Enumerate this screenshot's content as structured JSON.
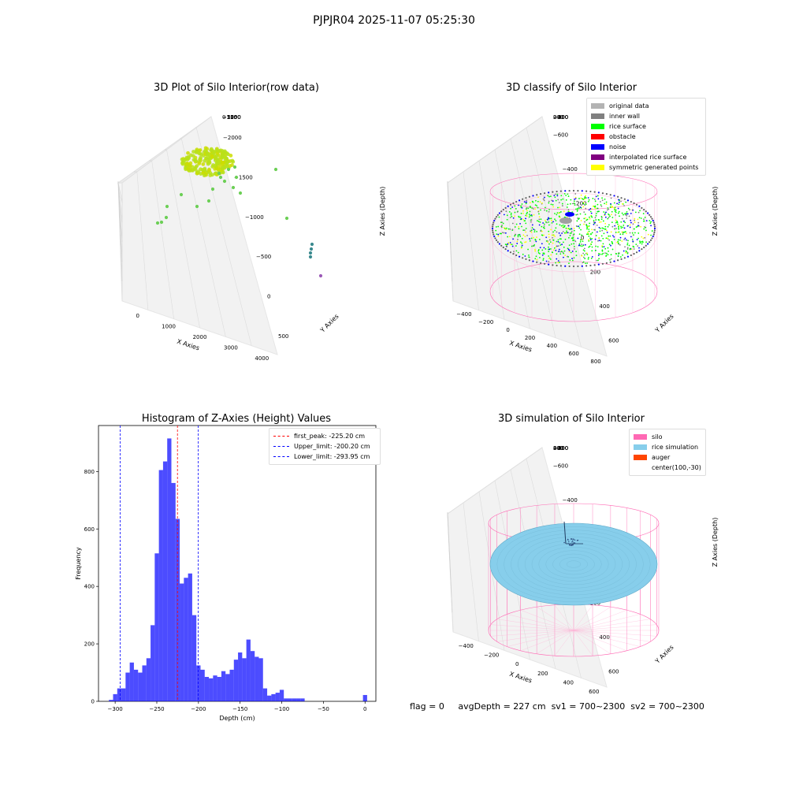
{
  "suptitle": "PJPJR04 2025-11-07 05:25:30",
  "panels": {
    "p1": {
      "title": "3D Plot of Silo Interior(row data)",
      "xlabel": "X Axies",
      "ylabel": "Y Axies",
      "zlabel": "Z Axies (Depth)",
      "xticks": [
        "0",
        "1000",
        "2000",
        "3000",
        "4000"
      ],
      "yticks": [
        "500",
        "0",
        "−500",
        "−1000",
        "−1500",
        "−2000"
      ],
      "zticks": [
        "0",
        "−250",
        "−500",
        "−750",
        "−1000",
        "−1250",
        "−1500",
        "−1750"
      ]
    },
    "p2": {
      "title": "3D classify of Silo Interior",
      "xlabel": "X Axies",
      "ylabel": "Y Axies",
      "zlabel": "Z Axies (Depth)",
      "xticks": [
        "−400",
        "−200",
        "0",
        "200",
        "400",
        "600",
        "800"
      ],
      "yticks": [
        "600",
        "400",
        "200",
        "0",
        "−200",
        "−400",
        "−600"
      ],
      "zticks": [
        "200",
        "0",
        "−200",
        "−400",
        "−600",
        "−800"
      ],
      "legend": [
        {
          "label": "original data",
          "color": "#b3b3b3"
        },
        {
          "label": "inner wall",
          "color": "#808080"
        },
        {
          "label": "rice surface",
          "color": "#00ff00"
        },
        {
          "label": "obstacle",
          "color": "#ff0000"
        },
        {
          "label": "noise",
          "color": "#0000ff"
        },
        {
          "label": "interpolated rice surface",
          "color": "#800080"
        },
        {
          "label": "symmetric generated points",
          "color": "#ffff00"
        }
      ],
      "partial_tick": "00"
    },
    "p4": {
      "title": "3D simulation of Silo Interior",
      "xlabel": "X Axies",
      "ylabel": "Y Axies",
      "zlabel": "Z Axies (Depth)",
      "xticks": [
        "−400",
        "−200",
        "0",
        "200",
        "400",
        "600"
      ],
      "yticks": [
        "600",
        "400",
        "200",
        "0",
        "−200",
        "−400",
        "−600"
      ],
      "zticks": [
        "400",
        "200",
        "0",
        "−200",
        "−400",
        "−600",
        "−800"
      ],
      "legend": [
        {
          "label": "silo",
          "color": "#ff69b4"
        },
        {
          "label": "rice simulation",
          "color": "#87ceeb"
        },
        {
          "label": "auger",
          "color": "#ff4500"
        },
        {
          "label": "center(100,-30)",
          "color": ""
        }
      ]
    }
  },
  "chart_data": [
    {
      "type": "scatter",
      "panel": "3D Plot of Silo Interior(row data)",
      "projection": "3d",
      "note_points": "dense disk of points near x≈500, z≈-50; sparse outliers down to z≈-1800 near x≈4200",
      "xlim": [
        -500,
        4500
      ],
      "ylim": [
        -2000,
        700
      ],
      "zlim": [
        -1900,
        100
      ]
    },
    {
      "type": "scatter",
      "panel": "3D classify of Silo Interior",
      "projection": "3d",
      "series": [
        {
          "name": "original data"
        },
        {
          "name": "inner wall"
        },
        {
          "name": "rice surface"
        },
        {
          "name": "obstacle"
        },
        {
          "name": "noise"
        },
        {
          "name": "interpolated rice surface"
        },
        {
          "name": "symmetric generated points"
        }
      ],
      "xlim": [
        -500,
        800
      ],
      "ylim": [
        -700,
        700
      ],
      "zlim": [
        -900,
        300
      ]
    },
    {
      "type": "bar",
      "panel": "Histogram of Z-Axies (Height) Values",
      "title": "Histogram of Z-Axies (Height) Values",
      "xlabel": "Depth (cm)",
      "ylabel": "Frequency",
      "xlim": [
        -320,
        13
      ],
      "ylim": [
        0,
        960
      ],
      "xticks": [
        -300,
        -250,
        -200,
        -150,
        -100,
        -50,
        0
      ],
      "yticks": [
        0,
        200,
        400,
        600,
        800
      ],
      "bin_start": -307.5,
      "bin_width": 5.0,
      "values": [
        5,
        25,
        45,
        45,
        100,
        135,
        110,
        100,
        125,
        150,
        265,
        515,
        805,
        835,
        915,
        760,
        635,
        410,
        430,
        445,
        300,
        125,
        110,
        85,
        80,
        90,
        85,
        105,
        95,
        110,
        145,
        170,
        150,
        215,
        175,
        155,
        150,
        45,
        20,
        25,
        30,
        40,
        10,
        10,
        10,
        10,
        10,
        0,
        0,
        0,
        0,
        0,
        0,
        0,
        0,
        0,
        0,
        0,
        0,
        0,
        0,
        22
      ],
      "bar_color": "#0000ff",
      "lines": [
        {
          "label": "first_peak: -225.20 cm",
          "x": -225.2,
          "color": "#ff0000"
        },
        {
          "label": "Upper_limit: -200.20 cm",
          "x": -200.2,
          "color": "#0000ff"
        },
        {
          "label": "Lower_limit: -293.95 cm",
          "x": -293.95,
          "color": "#0000ff"
        }
      ],
      "legend_loc": "upper right"
    },
    {
      "type": "scatter",
      "panel": "3D simulation of Silo Interior",
      "projection": "3d",
      "series": [
        {
          "name": "silo"
        },
        {
          "name": "rice simulation"
        },
        {
          "name": "auger"
        },
        {
          "name": "center(100,-30)"
        }
      ],
      "xlim": [
        -500,
        700
      ],
      "ylim": [
        -700,
        700
      ],
      "zlim": [
        -900,
        450
      ]
    }
  ],
  "histogram_title": "Histogram of Z-Axies (Height) Values",
  "histogram_xlabel": "Depth (cm)",
  "histogram_ylabel": "Frequency",
  "footer": {
    "flag": "flag = 0",
    "avgDepth": "avgDepth = 227 cm",
    "sv1": "sv1 = 700~2300",
    "sv2": "sv2 = 700~2300"
  }
}
